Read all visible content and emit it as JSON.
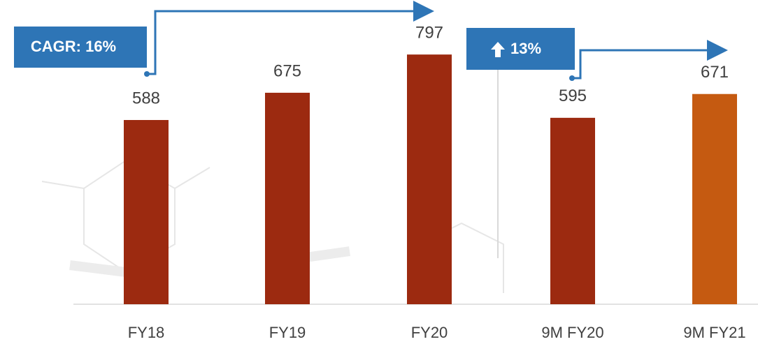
{
  "chart_data": {
    "type": "bar",
    "categories": [
      "FY18",
      "FY19",
      "FY20",
      "9M FY20",
      "9M FY21"
    ],
    "values": [
      588,
      675,
      797,
      595,
      671
    ],
    "colors": [
      "#9c2a10",
      "#9c2a10",
      "#9c2a10",
      "#9c2a10",
      "#c55a11"
    ],
    "annotations": [
      "CAGR: 16%",
      "13%"
    ]
  }
}
